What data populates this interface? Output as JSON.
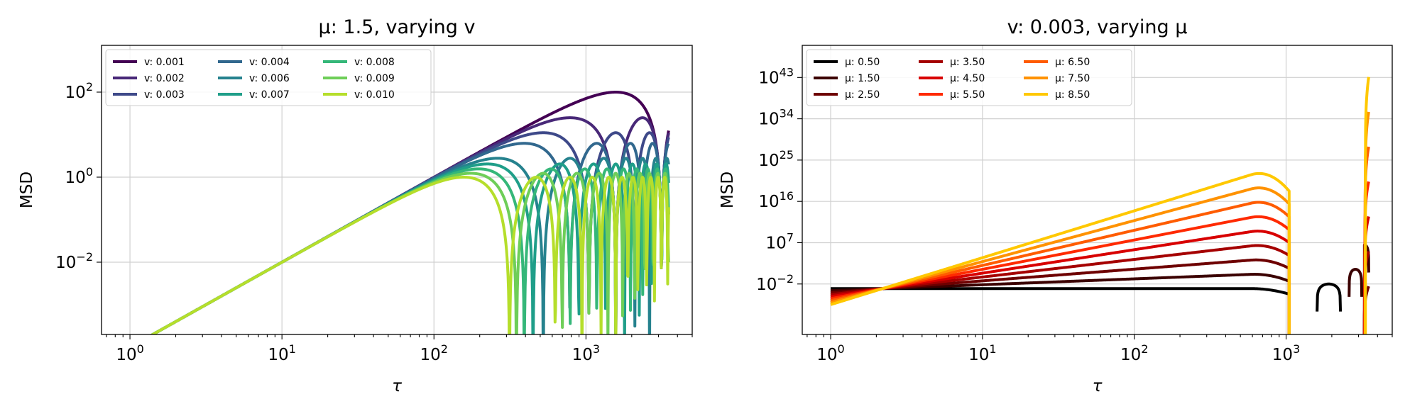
{
  "chart_data": [
    {
      "type": "line",
      "title": "μ: 1.5, varying v",
      "xlabel": "τ",
      "ylabel": "MSD",
      "xscale": "log",
      "yscale": "log",
      "xlim": [
        0.65,
        5000
      ],
      "ylim_exponent": [
        -3.7,
        3.1
      ],
      "x_ticks": [
        {
          "base": "10",
          "exp": "0"
        },
        {
          "base": "10",
          "exp": "1"
        },
        {
          "base": "10",
          "exp": "2"
        },
        {
          "base": "10",
          "exp": "3"
        }
      ],
      "y_ticks": [
        {
          "base": "10",
          "exp": "−2"
        },
        {
          "base": "10",
          "exp": "0"
        },
        {
          "base": "10",
          "exp": "2"
        }
      ],
      "grid": true,
      "legend": {
        "placement": "top-left",
        "columns": 3
      },
      "series": [
        {
          "name": "v: 0.001",
          "color": "#440154",
          "first_zero_tau": 3140
        },
        {
          "name": "v: 0.002",
          "color": "#482878",
          "first_zero_tau": 1570
        },
        {
          "name": "v: 0.003",
          "color": "#3e4989",
          "first_zero_tau": 1047
        },
        {
          "name": "v: 0.004",
          "color": "#31688e",
          "first_zero_tau": 785
        },
        {
          "name": "v: 0.006",
          "color": "#26828e",
          "first_zero_tau": 524
        },
        {
          "name": "v: 0.007",
          "color": "#1f9e89",
          "first_zero_tau": 449
        },
        {
          "name": "v: 0.008",
          "color": "#35b779",
          "first_zero_tau": 393
        },
        {
          "name": "v: 0.009",
          "color": "#6ece58",
          "first_zero_tau": 349
        },
        {
          "name": "v: 0.010",
          "color": "#b5de2b",
          "first_zero_tau": 314
        }
      ],
      "x_max": 3500,
      "value_at_tau_1": 0.0001
    },
    {
      "type": "line",
      "title": "v: 0.003, varying μ",
      "xlabel": "τ",
      "ylabel": "MSD",
      "xscale": "log",
      "yscale": "log",
      "xlim": [
        0.65,
        5000
      ],
      "ylim_exponent": [
        -13,
        50
      ],
      "x_ticks": [
        {
          "base": "10",
          "exp": "0"
        },
        {
          "base": "10",
          "exp": "1"
        },
        {
          "base": "10",
          "exp": "2"
        },
        {
          "base": "10",
          "exp": "3"
        }
      ],
      "y_ticks": [
        {
          "base": "10",
          "exp": "−2"
        },
        {
          "base": "10",
          "exp": "7"
        },
        {
          "base": "10",
          "exp": "16"
        },
        {
          "base": "10",
          "exp": "25"
        },
        {
          "base": "10",
          "exp": "34"
        },
        {
          "base": "10",
          "exp": "43"
        }
      ],
      "grid": true,
      "legend": {
        "placement": "top-left",
        "columns": 3
      },
      "series": [
        {
          "name": "μ: 0.50",
          "mu": 0.5,
          "color": "#000000"
        },
        {
          "name": "μ: 1.50",
          "mu": 1.5,
          "color": "#3b0000"
        },
        {
          "name": "μ: 2.50",
          "mu": 2.5,
          "color": "#6e0000"
        },
        {
          "name": "μ: 3.50",
          "mu": 3.5,
          "color": "#a50000"
        },
        {
          "name": "μ: 4.50",
          "mu": 4.5,
          "color": "#d80000"
        },
        {
          "name": "μ: 5.50",
          "mu": 5.5,
          "color": "#ff2a00"
        },
        {
          "name": "μ: 6.50",
          "mu": 6.5,
          "color": "#ff5c00"
        },
        {
          "name": "μ: 7.50",
          "mu": 7.5,
          "color": "#ff9200"
        },
        {
          "name": "μ: 8.50",
          "mu": 8.5,
          "color": "#ffc800"
        }
      ],
      "value_at_tau_1_exponent": -6.5,
      "pivot": {
        "tau": 2.2,
        "exponent": -3.0
      },
      "first_zero_tau": 1047,
      "second_branch_tau": [
        1570,
        3500
      ]
    }
  ]
}
